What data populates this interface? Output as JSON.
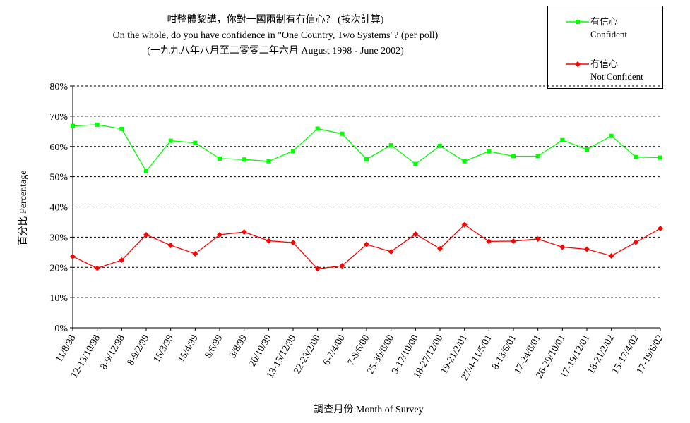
{
  "title": {
    "line1": "咁整體黎講，你對一國兩制有冇信心？ (按次計算)",
    "line2": "On the whole, do you have confidence in \"One Country, Two Systems\"? (per poll)",
    "line3": "(一九九八年八月至二零零二年六月 August 1998 - June 2002)"
  },
  "legend": {
    "items": [
      {
        "name_zh": "有信心",
        "name_en": "Confident",
        "color": "#00ff00"
      },
      {
        "name_zh": "冇信心",
        "name_en": "Not Confident",
        "color": "#ff0000"
      }
    ]
  },
  "chart_data": {
    "type": "line",
    "title": "咁整體黎講，你對一國兩制有冇信心？ (按次計算)",
    "xlabel": "調查月份 Month of Survey",
    "ylabel": "百分比 Percentage",
    "ylim": [
      0,
      80
    ],
    "yticks": [
      "0%",
      "10%",
      "20%",
      "30%",
      "40%",
      "50%",
      "60%",
      "70%",
      "80%"
    ],
    "grid": "horizontal dashed",
    "legend_position": "top-right",
    "categories": [
      "11/8/98",
      "12-13/10/98",
      "8-9/12/98",
      "8-9/2/99",
      "15/3/99",
      "15/4/99",
      "8/6/99",
      "3/8/99",
      "20/10/99",
      "13-15/12/99",
      "22-23/2/00",
      "6-7/4/00",
      "7-8/6/00",
      "25-30/8/00",
      "9-17/10/00",
      "18-27/12/00",
      "19-21/2/01",
      "27/4-11/5/01",
      "8-13/6/01",
      "17-24/8/01",
      "26-29/10/01",
      "17-19/12/01",
      "18-21/2/02",
      "15-17/4/02",
      "17-19/6/02"
    ],
    "series": [
      {
        "name": "Confident",
        "color": "#00ff00",
        "values": [
          66.8,
          67.2,
          65.8,
          51.8,
          61.9,
          61.2,
          56.0,
          55.7,
          55.1,
          58.5,
          65.9,
          64.2,
          55.8,
          60.4,
          54.2,
          60.2,
          55.1,
          58.4,
          56.8,
          56.8,
          62.1,
          59.0,
          63.5,
          56.5,
          56.3
        ]
      },
      {
        "name": "Not Confident",
        "color": "#ff0000",
        "values": [
          23.6,
          19.7,
          22.4,
          30.8,
          27.3,
          24.5,
          30.8,
          31.7,
          28.8,
          28.2,
          19.5,
          20.5,
          27.6,
          25.2,
          31.0,
          26.2,
          34.1,
          28.6,
          28.7,
          29.4,
          26.7,
          26.0,
          23.8,
          28.3,
          32.9
        ]
      }
    ]
  }
}
